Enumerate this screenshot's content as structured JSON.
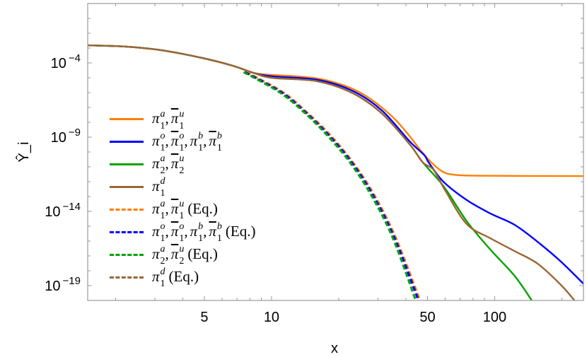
{
  "chart_data": {
    "type": "line",
    "title": "",
    "xlabel": "x",
    "ylabel": "Ŷ_i",
    "xscale": "log",
    "yscale": "log",
    "xlim": [
      1.5,
      250
    ],
    "ylim": [
      1e-20,
      1
    ],
    "x_tick_labels": [
      {
        "value": 5,
        "label": "5"
      },
      {
        "value": 10,
        "label": "10"
      },
      {
        "value": 50,
        "label": "50"
      },
      {
        "value": 100,
        "label": "100"
      }
    ],
    "y_tick_labels": [
      {
        "value": -4,
        "base": "10",
        "exp": "−4"
      },
      {
        "value": -9,
        "base": "10",
        "exp": "−9"
      },
      {
        "value": -14,
        "base": "10",
        "exp": "−14"
      },
      {
        "value": -19,
        "base": "10",
        "exp": "−19"
      }
    ],
    "grid": false,
    "legend_placement": "center-left",
    "series": [
      {
        "color": "#FF7F00",
        "dash": false,
        "terms": [
          {
            "sym": "π",
            "bar": false,
            "sub": "1",
            "sup": "a"
          },
          {
            "sym": "π",
            "bar": true,
            "sub": "1",
            "sup": "u"
          }
        ],
        "suffix": "",
        "x": [
          1.48,
          2.22,
          3.2,
          4.9,
          6.7,
          8.3,
          10,
          12.9,
          16.1,
          19.3,
          23.2,
          26.9,
          31.2,
          36.1,
          41.7,
          46.6,
          52,
          58,
          64.9,
          86.9,
          251
        ],
        "y": [
          0.00155,
          0.00126,
          0.000724,
          0.000214,
          6.46e-05,
          2.14e-05,
          1.55e-05,
          1.26e-05,
          8.9e-06,
          4.68e-06,
          1.74e-06,
          5.13e-07,
          1e-07,
          1.38e-08,
          1.12e-09,
          1.26e-10,
          2e-11,
          5.13e-12,
          3.02e-12,
          2.51e-12,
          2.4e-12
        ]
      },
      {
        "color": "#0000FF",
        "dash": false,
        "terms": [
          {
            "sym": "π",
            "bar": false,
            "sub": "1",
            "sup": "o"
          },
          {
            "sym": "π",
            "bar": true,
            "sub": "1",
            "sup": "o"
          },
          {
            "sym": "π",
            "bar": false,
            "sub": "1",
            "sup": "b"
          },
          {
            "sym": "π",
            "bar": true,
            "sub": "1",
            "sup": "b"
          }
        ],
        "suffix": "",
        "x": [
          1.48,
          2.22,
          3.2,
          4.9,
          6.7,
          8.3,
          10,
          16.1,
          23.2,
          31.2,
          41.7,
          48.3,
          50.6,
          58.9,
          75,
          95.6,
          122.6,
          155.7,
          198,
          251
        ],
        "y": [
          0.00155,
          0.00126,
          0.000724,
          0.000214,
          6.46e-05,
          2.14e-05,
          1.26e-05,
          7.24e-06,
          1.26e-06,
          6.31e-08,
          5.01e-10,
          6.31e-11,
          2e-11,
          1e-12,
          5.75e-14,
          7.24e-15,
          1.26e-15,
          8.9e-17,
          4.17e-18,
          1.26e-19
        ]
      },
      {
        "color": "#00A300",
        "dash": false,
        "terms": [
          {
            "sym": "π",
            "bar": false,
            "sub": "2",
            "sup": "a"
          },
          {
            "sym": "π",
            "bar": true,
            "sub": "2",
            "sup": "u"
          }
        ],
        "suffix": "",
        "x": [
          1.48,
          2.22,
          3.2,
          4.9,
          6.7,
          8.3,
          10,
          16.1,
          23.2,
          31.2,
          41.7,
          47.6,
          58.9,
          75,
          95.6,
          122.6,
          146.7
        ],
        "y": [
          0.00155,
          0.00126,
          0.000724,
          0.000214,
          6.46e-05,
          2.14e-05,
          1e-05,
          5.75e-06,
          8.9e-07,
          3.98e-08,
          3.16e-10,
          2e-11,
          5.13e-13,
          2.14e-15,
          2.69e-17,
          4.68e-19,
          1e-20
        ]
      },
      {
        "color": "#9E6534",
        "dash": false,
        "terms": [
          {
            "sym": "π",
            "bar": false,
            "sub": "1",
            "sup": "d"
          }
        ],
        "suffix": "",
        "x": [
          1.48,
          2.22,
          3.2,
          4.9,
          6.7,
          8.3,
          10,
          16.1,
          23.2,
          31.2,
          41.7,
          47.6,
          53.2,
          60.2,
          75,
          95.6,
          122.6,
          155.7,
          198,
          228
        ],
        "y": [
          0.00155,
          0.00126,
          0.000724,
          0.000214,
          6.46e-05,
          2.14e-05,
          1e-05,
          5.75e-06,
          8.9e-07,
          3.98e-08,
          3.16e-10,
          2e-11,
          6.31e-12,
          2.4e-13,
          1.38e-15,
          1.55e-16,
          2.14e-17,
          3.02e-18,
          1.12e-19,
          1e-20
        ]
      },
      {
        "color": "#FF7F00",
        "dash": true,
        "terms": [
          {
            "sym": "π",
            "bar": false,
            "sub": "1",
            "sup": "a"
          },
          {
            "sym": "π",
            "bar": true,
            "sub": "1",
            "sup": "u"
          }
        ],
        "suffix": "(Eq.)",
        "x": [
          7.7,
          11.2,
          14.2,
          18.2,
          23.2,
          29,
          36.1,
          46.3
        ],
        "y": [
          2.4e-05,
          1.12e-06,
          5.75e-08,
          1.55e-09,
          1.95e-11,
          1.12e-13,
          1.58e-16,
          1e-20
        ]
      },
      {
        "color": "#0000FF",
        "dash": true,
        "terms": [
          {
            "sym": "π",
            "bar": false,
            "sub": "1",
            "sup": "o"
          },
          {
            "sym": "π",
            "bar": true,
            "sub": "1",
            "sup": "o"
          },
          {
            "sym": "π",
            "bar": false,
            "sub": "1",
            "sup": "b"
          },
          {
            "sym": "π",
            "bar": true,
            "sub": "1",
            "sup": "b"
          }
        ],
        "suffix": "(Eq.)",
        "x": [
          7.6,
          11.0,
          14.0,
          17.9,
          22.9,
          28.6,
          35.6,
          45.6
        ],
        "y": [
          2.4e-05,
          1.12e-06,
          5.75e-08,
          1.55e-09,
          1.95e-11,
          1.12e-13,
          1.58e-16,
          1e-20
        ]
      },
      {
        "color": "#00A300",
        "dash": true,
        "terms": [
          {
            "sym": "π",
            "bar": false,
            "sub": "2",
            "sup": "a"
          },
          {
            "sym": "π",
            "bar": true,
            "sub": "2",
            "sup": "u"
          }
        ],
        "suffix": "(Eq.)",
        "x": [
          7.5,
          10.8,
          13.8,
          17.6,
          22.5,
          28.1,
          35.0,
          44.3
        ],
        "y": [
          2.4e-05,
          1.12e-06,
          5.75e-08,
          1.55e-09,
          1.95e-11,
          1.12e-13,
          1.58e-16,
          1e-20
        ]
      },
      {
        "color": "#9E6534",
        "dash": true,
        "terms": [
          {
            "sym": "π",
            "bar": false,
            "sub": "1",
            "sup": "d"
          }
        ],
        "suffix": "(Eq.)",
        "x": [],
        "y": []
      }
    ]
  }
}
